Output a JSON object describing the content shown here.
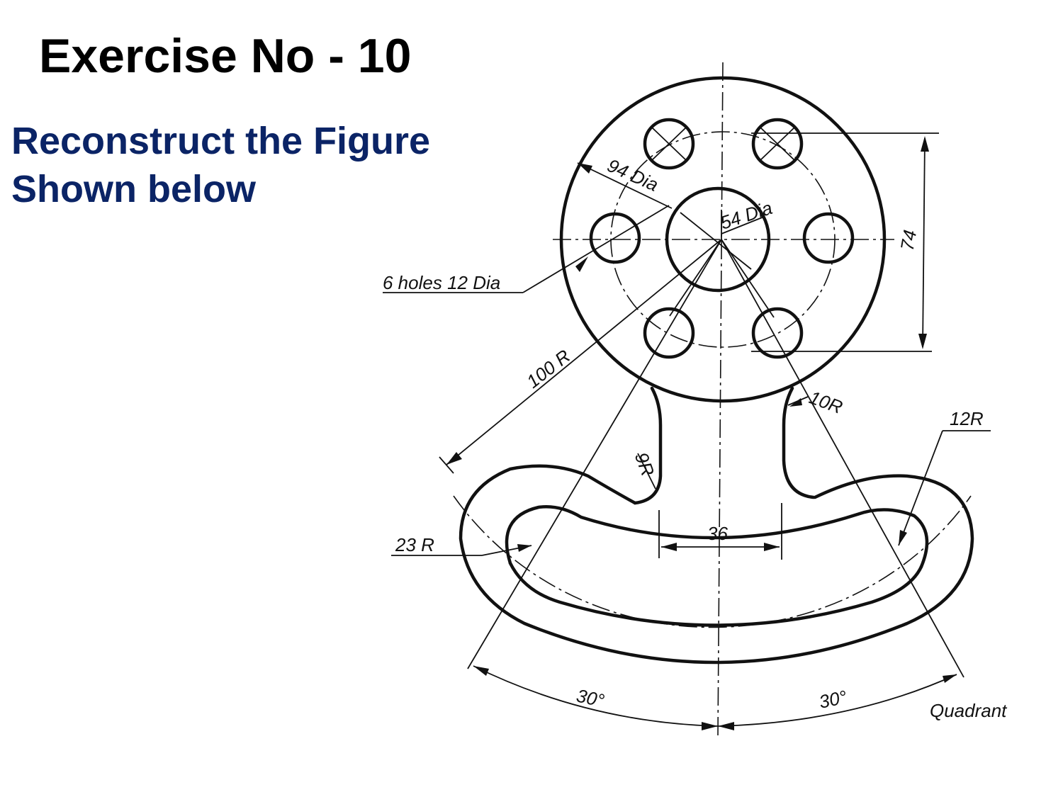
{
  "title": "Exercise No - 10",
  "subtitle": {
    "line1": "Reconstruct the Figure",
    "line2": "Shown below"
  },
  "drawing": {
    "labels": {
      "dia94": "94 Dia",
      "dia54": "54 Dia",
      "holes": "6 holes 12 Dia",
      "dim74": "74",
      "r100": "100 R",
      "r10": "10R",
      "r12": "12R",
      "r9": "9R",
      "r23": "23 R",
      "dim36": "36",
      "angle_left": "30°",
      "angle_right": "30°",
      "quadrant": "Quadrant"
    }
  },
  "colors": {
    "title": "#000000",
    "subtitle": "#0b2466",
    "ink": "#111111"
  }
}
